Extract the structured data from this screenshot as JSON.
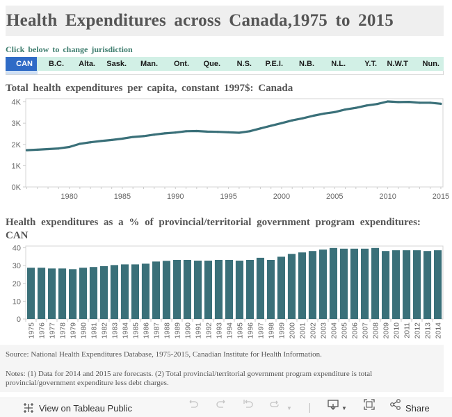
{
  "header": {
    "title": "Health Expenditures across Canada,1975 to 2015"
  },
  "jurisdiction": {
    "prompt": "Click below to change jurisdiction",
    "selected": "CAN",
    "items": [
      {
        "label": "CAN",
        "active": true
      },
      {
        "label": "B.C.",
        "active": false
      },
      {
        "label": "Alta.",
        "active": false
      },
      {
        "label": "Sask.",
        "active": false
      },
      {
        "label": "Man.",
        "active": false
      },
      {
        "label": "Ont.",
        "active": false
      },
      {
        "label": "Que.",
        "active": false
      },
      {
        "label": "N.S.",
        "active": false
      },
      {
        "label": "P.E.I.",
        "active": false
      },
      {
        "label": "N.B.",
        "active": false
      },
      {
        "label": "N.L.",
        "active": false
      },
      {
        "label": "Y.T.",
        "active": false
      },
      {
        "label": "N.W.T",
        "active": false
      },
      {
        "label": "Nun.",
        "active": false
      }
    ],
    "colors": {
      "active_bg": "#2f6bc6",
      "inactive_bg": "#d2f0e6"
    }
  },
  "chart_data": [
    {
      "type": "line",
      "title": "Total health expenditures per capita, constant 1997$: Canada",
      "xlabel": "",
      "ylabel": "",
      "color": "#3a7079",
      "x": [
        1976,
        1977,
        1978,
        1979,
        1980,
        1981,
        1982,
        1983,
        1984,
        1985,
        1986,
        1987,
        1988,
        1989,
        1990,
        1991,
        1992,
        1993,
        1994,
        1995,
        1996,
        1997,
        1998,
        1999,
        2000,
        2001,
        2002,
        2003,
        2004,
        2005,
        2006,
        2007,
        2008,
        2009,
        2010,
        2011,
        2012,
        2013,
        2014,
        2015
      ],
      "series": [
        {
          "name": "Total health expenditures per capita (constant 1997$)",
          "values": [
            1730,
            1750,
            1780,
            1810,
            1880,
            2030,
            2100,
            2160,
            2210,
            2270,
            2350,
            2390,
            2460,
            2520,
            2560,
            2620,
            2630,
            2600,
            2590,
            2570,
            2550,
            2620,
            2750,
            2880,
            3000,
            3130,
            3230,
            3350,
            3450,
            3520,
            3640,
            3720,
            3830,
            3900,
            4020,
            3990,
            4000,
            3960,
            3960,
            3910
          ]
        }
      ],
      "xlim": [
        1975.9,
        2015.2
      ],
      "ylim": [
        0,
        4150
      ],
      "yticks": [
        0,
        1000,
        2000,
        3000,
        4000
      ],
      "ytick_labels": [
        "0K",
        "1K",
        "2K",
        "3K",
        "4K"
      ],
      "xticks": [
        1980,
        1985,
        1990,
        1995,
        2000,
        2005,
        2010,
        2015
      ],
      "xtick_labels": [
        "1980",
        "1985",
        "1990",
        "1995",
        "2000",
        "2005",
        "2010",
        "2015"
      ],
      "grid": false,
      "legend": "none"
    },
    {
      "type": "bar",
      "title": "Health expenditures as a % of provincial/territorial government program expenditures: CAN",
      "xlabel": "",
      "ylabel": "",
      "color": "#3a7079",
      "categories": [
        "1975",
        "1976",
        "1977",
        "1978",
        "1979",
        "1980",
        "1981",
        "1982",
        "1983",
        "1984",
        "1985",
        "1986",
        "1987",
        "1988",
        "1989",
        "1990",
        "1991",
        "1992",
        "1993",
        "1994",
        "1995",
        "1996",
        "1997",
        "1998",
        "1999",
        "2000",
        "2001",
        "2002",
        "2003",
        "2004",
        "2005",
        "2006",
        "2007",
        "2008",
        "2009",
        "2010",
        "2011",
        "2012",
        "2013",
        "2014"
      ],
      "values": [
        28.8,
        28.8,
        28.4,
        28.4,
        28.0,
        28.8,
        29.2,
        29.7,
        30.3,
        30.7,
        30.7,
        31.1,
        32.3,
        32.7,
        33.2,
        33.2,
        32.8,
        32.8,
        33.2,
        33.2,
        32.8,
        33.2,
        34.4,
        33.2,
        35.0,
        36.6,
        37.4,
        38.2,
        39.0,
        39.9,
        39.5,
        39.5,
        39.5,
        39.9,
        38.2,
        38.6,
        38.6,
        38.6,
        38.2,
        38.6
      ],
      "ylim": [
        0,
        41
      ],
      "yticks": [
        0,
        10,
        20,
        30,
        40
      ],
      "ytick_labels": [
        "0",
        "10",
        "20",
        "30",
        "40"
      ],
      "grid": false,
      "legend": "none"
    }
  ],
  "footer_notes": {
    "source": "Source: National Health Expenditures Database, 1975-2015, Canadian Institute for Health Information.",
    "notes": "Notes: (1) Data for 2014 and 2015 are forecasts. (2) Total provincial/territorial government program expenditure is total provincial/government expenditure less debt charges."
  },
  "toolbar": {
    "view_on_public": "View on Tableau Public",
    "share": "Share",
    "icons": {
      "tableau": "tableau-logo-icon",
      "undo": "undo-icon",
      "redo": "redo-icon",
      "revert": "revert-icon",
      "refresh": "refresh-icon",
      "download": "download-icon",
      "fullscreen": "fullscreen-icon",
      "share": "share-icon"
    }
  }
}
